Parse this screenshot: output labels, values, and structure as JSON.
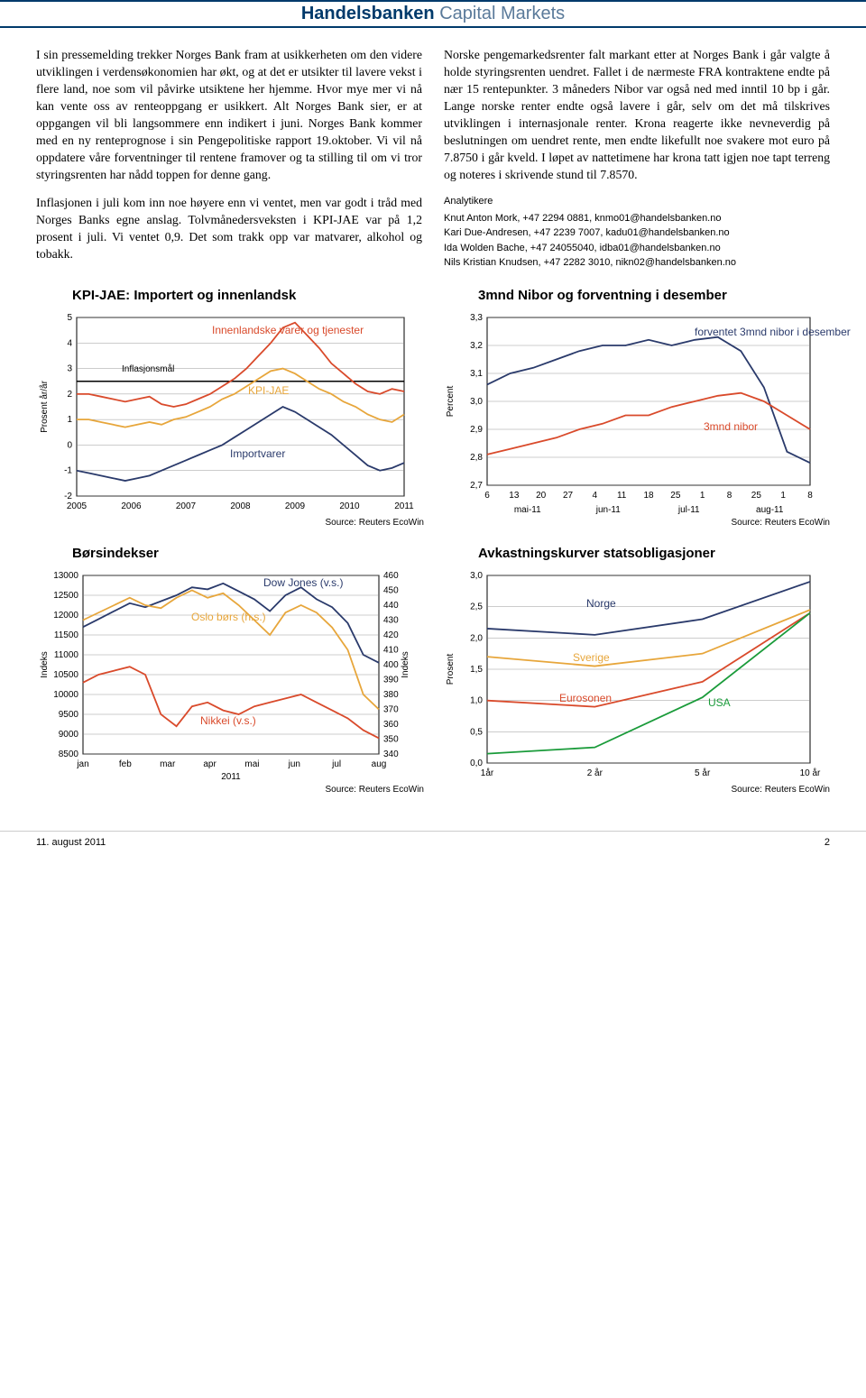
{
  "header": {
    "brand_bold": "Handelsbanken",
    "brand_light": " Capital Markets"
  },
  "left_col": {
    "p1": "I sin pressemelding trekker Norges Bank fram at usikkerheten om den videre utviklingen i verdensøkonomien har økt, og at det er utsikter til lavere vekst i flere land, noe som vil påvirke utsiktene her hjemme. Hvor mye mer vi nå kan vente oss av renteoppgang er usikkert. Alt Norges Bank sier, er at oppgangen vil bli langsommere enn indikert i juni. Norges Bank kommer med en ny renteprognose i sin Pengepolitiske rapport 19.oktober. Vi vil nå oppdatere våre forventninger til rentene framover og ta stilling til om vi tror styringsrenten har nådd toppen for denne gang.",
    "p2": "Inflasjonen i juli kom inn noe høyere enn vi ventet, men var godt i tråd med Norges Banks egne anslag. Tolvmånedersveksten i KPI-JAE var på 1,2 prosent i juli. Vi ventet 0,9. Det som trakk opp var matvarer, alkohol og tobakk."
  },
  "right_col": {
    "p1": "Norske pengemarkedsrenter falt markant etter at Norges Bank i går valgte å holde styringsrenten uendret. Fallet i de nærmeste FRA kontraktene endte på nær 15 rentepunkter. 3 måneders Nibor var også ned med inntil 10 bp i går. Lange norske renter endte også lavere i går, selv om det må tilskrives utviklingen i internasjonale renter. Krona reagerte ikke nevneverdig på beslutningen om uendret rente, men endte likefullt noe svakere mot euro på 7.8750 i går kveld. I løpet av nattetimene har krona tatt igjen noe tapt terreng og noteres i skrivende stund til 7.8570."
  },
  "analysts": {
    "header": "Analytikere",
    "lines": [
      "Knut Anton Mork, +47 2294 0881, knmo01@handelsbanken.no",
      "Kari Due-Andresen, +47 2239 7007, kadu01@handelsbanken.no",
      "Ida Wolden Bache, +47 24055040, idba01@handelsbanken.no",
      "Nils Kristian Knudsen, +47 2282 3010, nikn02@handelsbanken.no"
    ]
  },
  "chart1": {
    "title": "KPI-JAE: Importert og innenlandsk",
    "type": "line",
    "ylabel": "Prosent år/år",
    "ylim": [
      -2,
      5
    ],
    "ytick_step": 1,
    "xticks": [
      "2005",
      "2006",
      "2007",
      "2008",
      "2009",
      "2010",
      "2011"
    ],
    "background_color": "#ffffff",
    "grid_color": "#808080",
    "series": [
      {
        "name": "Innenlandske varer og tjenester",
        "color": "#d94a2b",
        "label_x": 150,
        "label_y": 28,
        "data": [
          2.0,
          2.0,
          1.9,
          1.8,
          1.7,
          1.8,
          1.9,
          1.6,
          1.5,
          1.6,
          1.8,
          2.0,
          2.3,
          2.6,
          3.0,
          3.5,
          4.0,
          4.6,
          4.8,
          4.3,
          3.8,
          3.2,
          2.8,
          2.4,
          2.1,
          2.0,
          2.2,
          2.1
        ]
      },
      {
        "name": "KPI-JAE",
        "color": "#e7a63b",
        "label_x": 190,
        "label_y": 95,
        "data": [
          1.0,
          1.0,
          0.9,
          0.8,
          0.7,
          0.8,
          0.9,
          0.8,
          1.0,
          1.1,
          1.3,
          1.5,
          1.8,
          2.0,
          2.3,
          2.6,
          2.9,
          3.0,
          2.8,
          2.5,
          2.2,
          2.0,
          1.7,
          1.5,
          1.2,
          1.0,
          0.9,
          1.2
        ]
      },
      {
        "name": "Importvarer",
        "color": "#2a3a6b",
        "label_x": 170,
        "label_y": 165,
        "data": [
          -1.0,
          -1.1,
          -1.2,
          -1.3,
          -1.4,
          -1.3,
          -1.2,
          -1.0,
          -0.8,
          -0.6,
          -0.4,
          -0.2,
          0.0,
          0.3,
          0.6,
          0.9,
          1.2,
          1.5,
          1.3,
          1.0,
          0.7,
          0.4,
          0.0,
          -0.4,
          -0.8,
          -1.0,
          -0.9,
          -0.7
        ]
      }
    ],
    "target_line": {
      "label": "Inflasjonsmål",
      "value": 2.5,
      "label_x": 50,
      "label_y": 70
    },
    "source": "Source: Reuters EcoWin"
  },
  "chart2": {
    "title": "3mnd Nibor og forventning i desember",
    "type": "line",
    "ylabel": "Percent",
    "ylim": [
      2.7,
      3.3
    ],
    "ytick_step": 0.1,
    "xticks": [
      "6",
      "13",
      "20",
      "27",
      "4",
      "11",
      "18",
      "25",
      "1",
      "8",
      "25",
      "1",
      "8"
    ],
    "xgroups": [
      "mai-11",
      "jun-11",
      "jul-11",
      "aug-11"
    ],
    "background_color": "#ffffff",
    "grid_color": "#808080",
    "series": [
      {
        "name": "forventet 3mnd nibor i desember",
        "color": "#2a3a6b",
        "label_x": 230,
        "label_y": 30,
        "data": [
          3.06,
          3.1,
          3.12,
          3.15,
          3.18,
          3.2,
          3.2,
          3.22,
          3.2,
          3.22,
          3.23,
          3.18,
          3.05,
          2.82,
          2.78
        ]
      },
      {
        "name": "3mnd nibor",
        "color": "#d94a2b",
        "label_x": 240,
        "label_y": 135,
        "data": [
          2.81,
          2.83,
          2.85,
          2.87,
          2.9,
          2.92,
          2.95,
          2.95,
          2.98,
          3.0,
          3.02,
          3.03,
          3.0,
          2.95,
          2.9
        ]
      }
    ],
    "source": "Source: Reuters EcoWin"
  },
  "chart3": {
    "title": "Børsindekser",
    "type": "line-dual",
    "ylabel_left": "Indeks",
    "ylabel_right": "Indeks",
    "ylim_left": [
      8500,
      13000
    ],
    "ytick_step_left": 500,
    "ylim_right": [
      340,
      460
    ],
    "ytick_step_right": 10,
    "xticks": [
      "jan",
      "feb",
      "mar",
      "apr",
      "mai",
      "jun",
      "jul",
      "aug"
    ],
    "xyear": "2011",
    "background_color": "#ffffff",
    "grid_color": "#808080",
    "series": [
      {
        "name": "Dow Jones (v.s.)",
        "color": "#2a3a6b",
        "axis": "left",
        "label_x": 200,
        "label_y": 22,
        "data": [
          11700,
          11900,
          12100,
          12300,
          12200,
          12350,
          12500,
          12700,
          12650,
          12800,
          12600,
          12400,
          12100,
          12500,
          12700,
          12400,
          12200,
          11800,
          11000,
          10800
        ]
      },
      {
        "name": "Oslo børs (h.s.)",
        "color": "#e7a63b",
        "axis": "right",
        "label_x": 120,
        "label_y": 60,
        "data": [
          430,
          435,
          440,
          445,
          440,
          438,
          445,
          450,
          445,
          448,
          440,
          430,
          420,
          435,
          440,
          435,
          425,
          410,
          380,
          370
        ]
      },
      {
        "name": "Nikkei (v.s.)",
        "color": "#d94a2b",
        "axis": "left",
        "label_x": 130,
        "label_y": 175,
        "data": [
          10300,
          10500,
          10600,
          10700,
          10500,
          9500,
          9200,
          9700,
          9800,
          9600,
          9500,
          9700,
          9800,
          9900,
          10000,
          9800,
          9600,
          9400,
          9100,
          8900
        ]
      }
    ],
    "source": "Source: Reuters EcoWin"
  },
  "chart4": {
    "title": "Avkastningskurver statsobligasjoner",
    "type": "line",
    "ylabel": "Prosent",
    "ylim": [
      0.0,
      3.0
    ],
    "ytick_step": 0.5,
    "xticks": [
      "1år",
      "2 år",
      "5 år",
      "10 år"
    ],
    "background_color": "#ffffff",
    "grid_color": "#808080",
    "series": [
      {
        "name": "Norge",
        "color": "#2a3a6b",
        "label_x": 110,
        "label_y": 45,
        "data": [
          2.15,
          2.05,
          2.3,
          2.9
        ]
      },
      {
        "name": "Sverige",
        "color": "#e7a63b",
        "label_x": 95,
        "label_y": 105,
        "data": [
          1.7,
          1.55,
          1.75,
          2.45
        ]
      },
      {
        "name": "Eurosonen",
        "color": "#d94a2b",
        "label_x": 80,
        "label_y": 150,
        "data": [
          1.0,
          0.9,
          1.3,
          2.4
        ]
      },
      {
        "name": "USA",
        "color": "#1a9b3a",
        "label_x": 245,
        "label_y": 155,
        "data": [
          0.15,
          0.25,
          1.05,
          2.4
        ]
      }
    ],
    "source": "Source: Reuters EcoWin"
  },
  "footer": {
    "date": "11. august 2011",
    "page": "2"
  }
}
